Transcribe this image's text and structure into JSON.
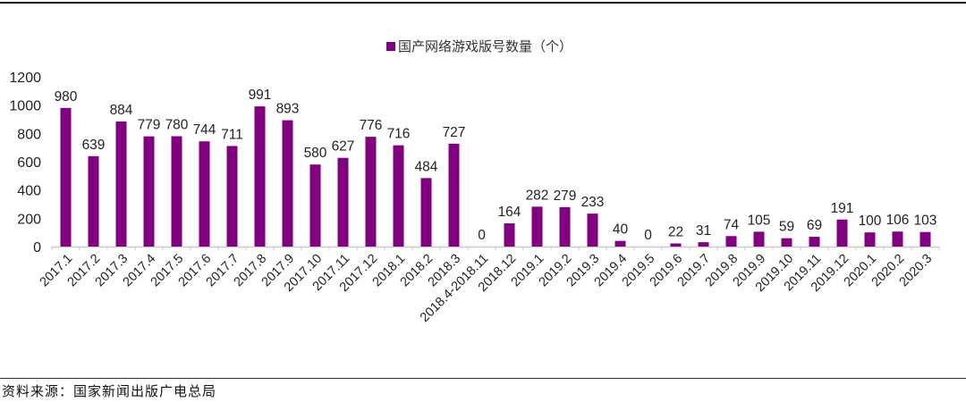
{
  "chart_data": {
    "type": "bar",
    "title": "",
    "legend": [
      "国产网络游戏版号数量（个）"
    ],
    "legend_position": "top-center",
    "xlabel": "",
    "ylabel": "",
    "ylim": [
      0,
      1200
    ],
    "yticks": [
      0,
      200,
      400,
      600,
      800,
      1000,
      1200
    ],
    "grid": false,
    "categories": [
      "2017.1",
      "2017.2",
      "2017.3",
      "2017.4",
      "2017.5",
      "2017.6",
      "2017.7",
      "2017.8",
      "2017.9",
      "2017.10",
      "2017.11",
      "2017.12",
      "2018.1",
      "2018.2",
      "2018.3",
      "2018.4-2018.11",
      "2018.12",
      "2019.1",
      "2019.2",
      "2019.3",
      "2019.4",
      "2019.5",
      "2019.6",
      "2019.7",
      "2019.8",
      "2019.9",
      "2019.10",
      "2019.11",
      "2019.12",
      "2020.1",
      "2020.2",
      "2020.3"
    ],
    "series": [
      {
        "name": "国产网络游戏版号数量（个）",
        "values": [
          980,
          639,
          884,
          779,
          780,
          744,
          711,
          991,
          893,
          580,
          627,
          776,
          716,
          484,
          727,
          0,
          164,
          282,
          279,
          233,
          40,
          0,
          22,
          31,
          74,
          105,
          59,
          69,
          191,
          100,
          106,
          103
        ]
      }
    ],
    "colors": {
      "bar": "#800080",
      "axis": "#c8c8c8"
    }
  },
  "legend": {
    "label": "国产网络游戏版号数量（个）"
  },
  "footer": {
    "source": "资料来源：国家新闻出版广电总局"
  }
}
